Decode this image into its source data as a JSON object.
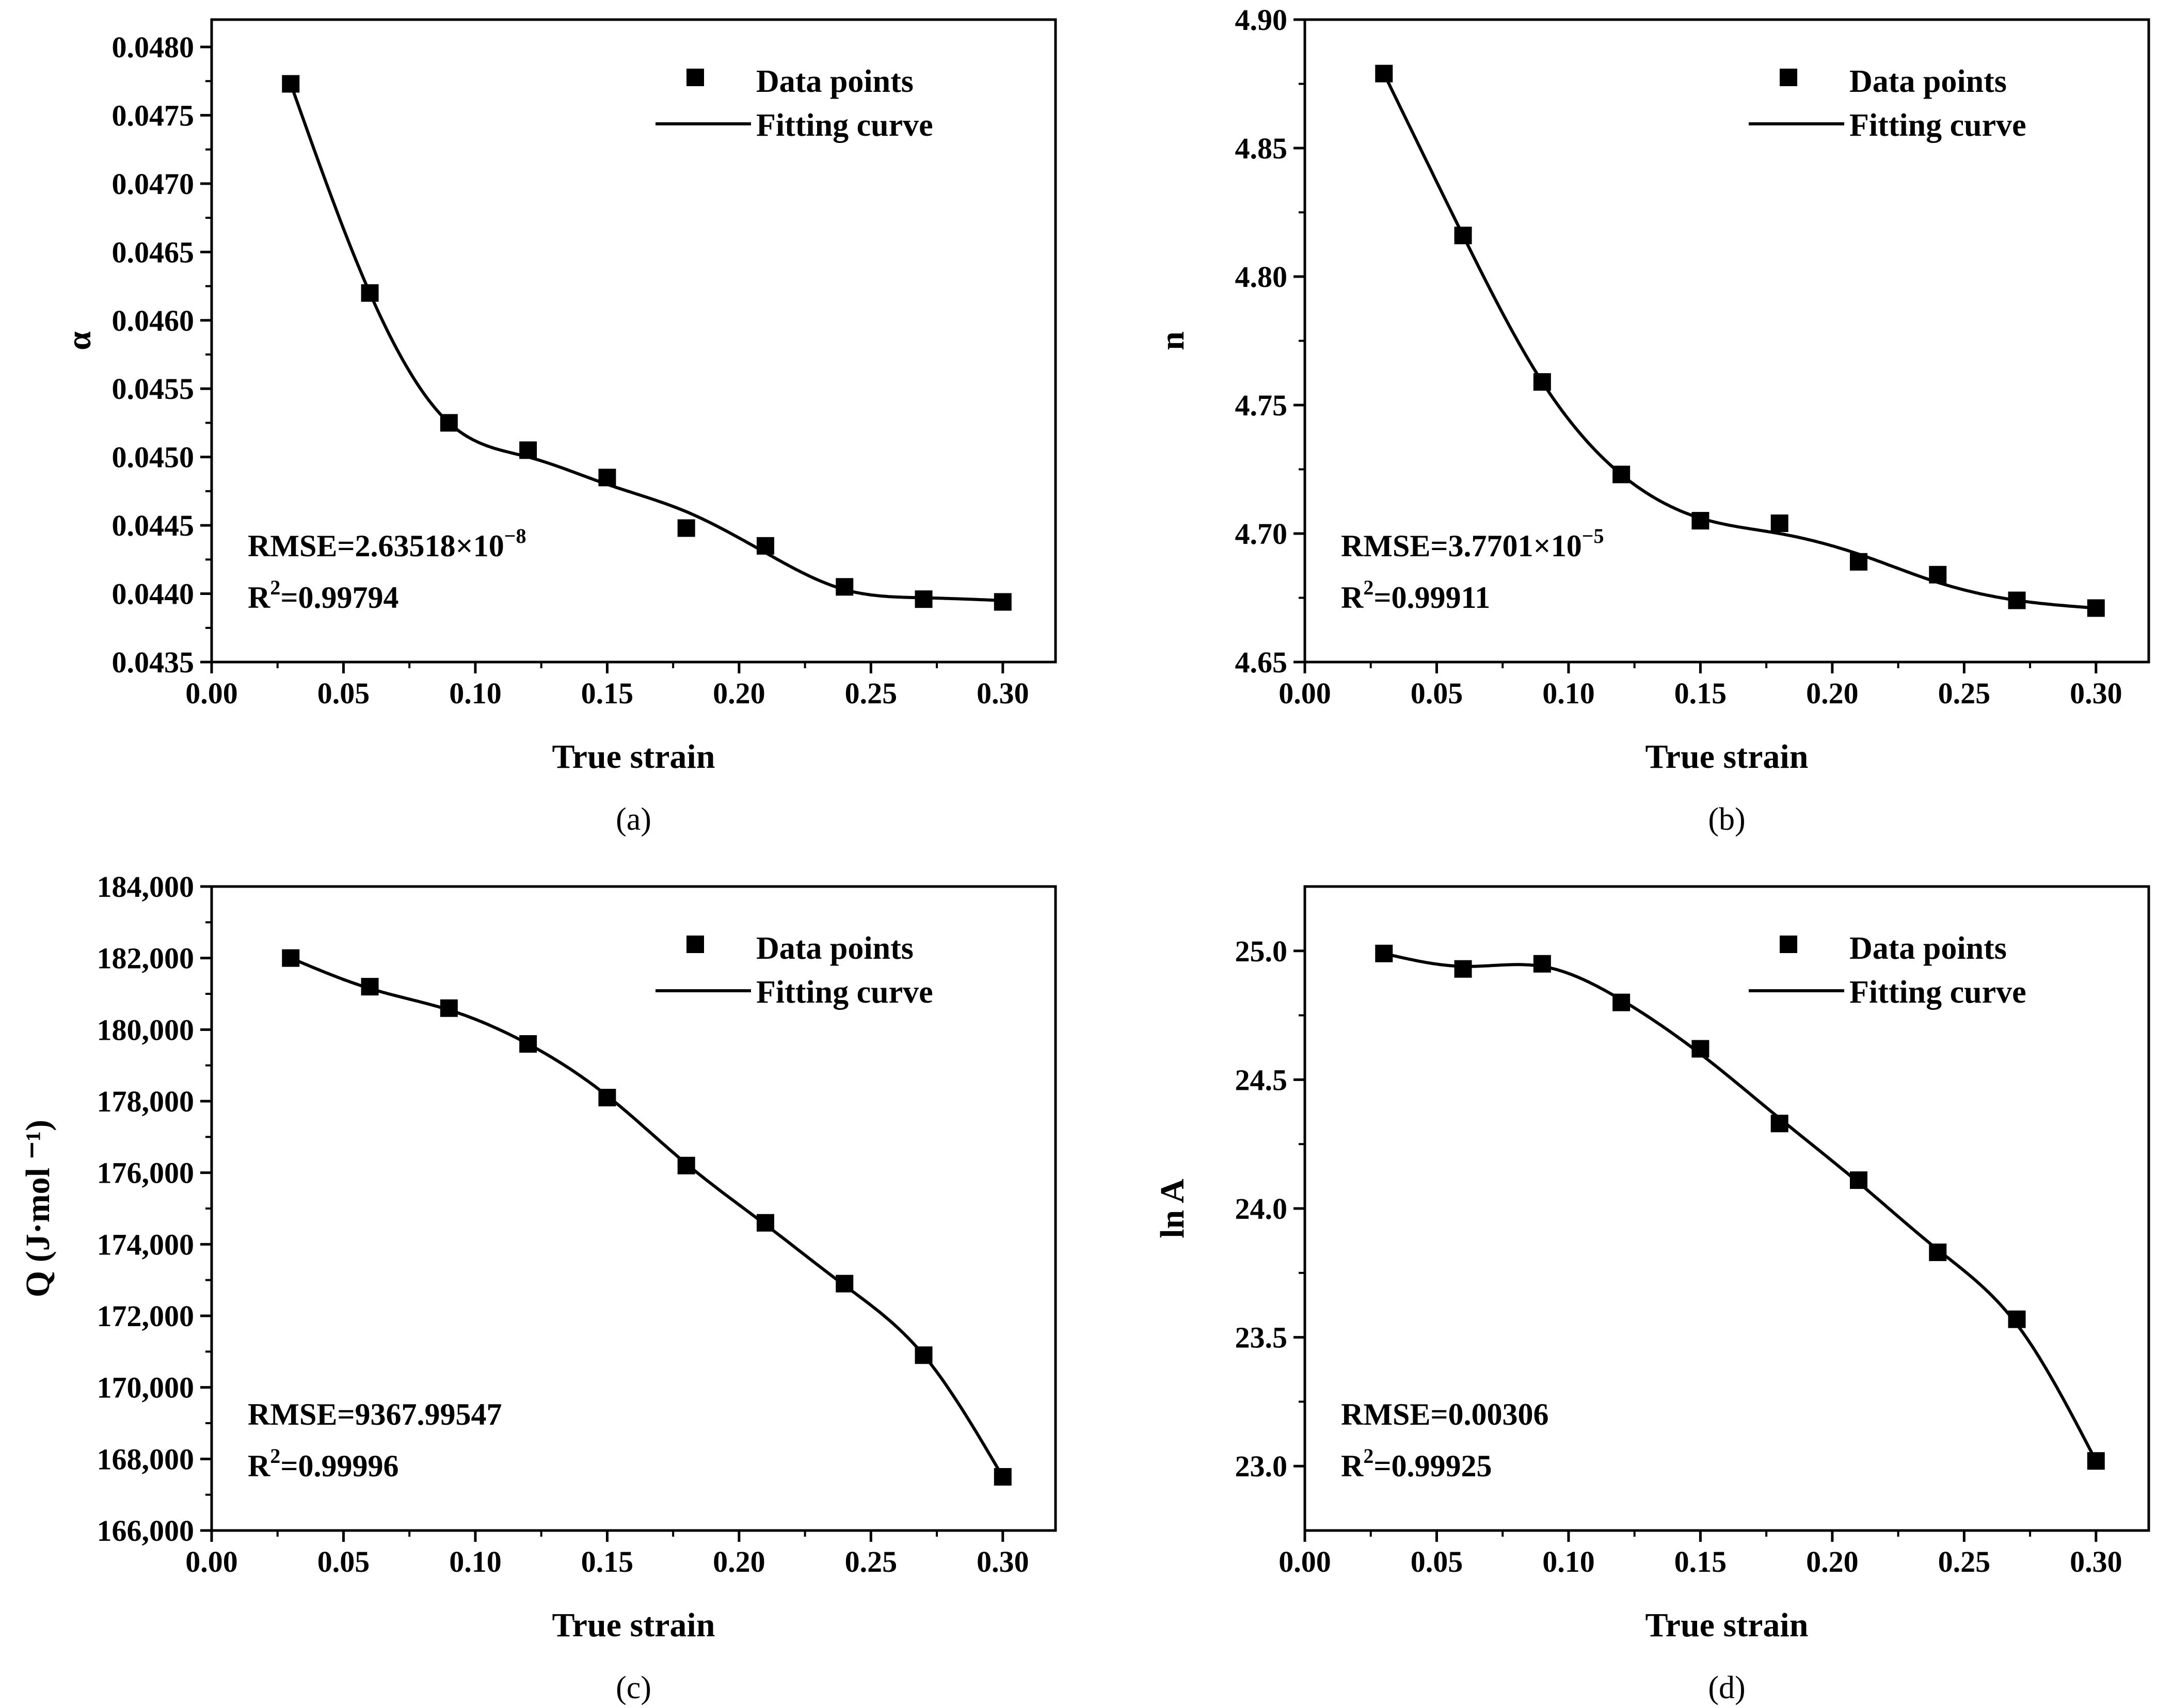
{
  "chart_data": [
    {
      "type": "scatter",
      "panel": "a",
      "caption": "(a)",
      "xlabel": "True strain",
      "ylabel": "α",
      "xlim": [
        0.0,
        0.32
      ],
      "ylim": [
        0.0435,
        0.0482
      ],
      "xticks": [
        0.0,
        0.05,
        0.1,
        0.15,
        0.2,
        0.25,
        0.3
      ],
      "xtick_labels": [
        "0.00",
        "0.05",
        "0.10",
        "0.15",
        "0.20",
        "0.25",
        "0.30"
      ],
      "yticks": [
        0.0435,
        0.044,
        0.0445,
        0.045,
        0.0455,
        0.046,
        0.0465,
        0.047,
        0.0475,
        0.048
      ],
      "ytick_labels": [
        "0.0435",
        "0.0440",
        "0.0445",
        "0.0450",
        "0.0455",
        "0.0460",
        "0.0465",
        "0.0470",
        "0.0475",
        "0.0480"
      ],
      "legend": {
        "points_label": "Data points",
        "curve_label": "Fitting curve",
        "position": "top-right"
      },
      "stats": {
        "rmse_label": "RMSE=2.63518×10",
        "rmse_exp": "−8",
        "r2_prefix": "R",
        "r2_sup": "2",
        "r2_value": "=0.99794"
      },
      "series": [
        {
          "name": "Data points",
          "x": [
            0.03,
            0.06,
            0.09,
            0.12,
            0.15,
            0.18,
            0.21,
            0.24,
            0.27,
            0.3
          ],
          "y": [
            0.04773,
            0.0462,
            0.04525,
            0.04505,
            0.04485,
            0.04448,
            0.04435,
            0.04405,
            0.04396,
            0.04394
          ]
        },
        {
          "name": "Fitting curve",
          "x": [
            0.03,
            0.06,
            0.09,
            0.12,
            0.15,
            0.18,
            0.21,
            0.24,
            0.27,
            0.3
          ],
          "y": [
            0.04773,
            0.0462,
            0.04525,
            0.045,
            0.0448,
            0.0446,
            0.0443,
            0.04403,
            0.04397,
            0.04395
          ]
        }
      ]
    },
    {
      "type": "scatter",
      "panel": "b",
      "caption": "(b)",
      "xlabel": "True strain",
      "ylabel": "n",
      "xlim": [
        0.0,
        0.32
      ],
      "ylim": [
        4.65,
        4.9
      ],
      "xticks": [
        0.0,
        0.05,
        0.1,
        0.15,
        0.2,
        0.25,
        0.3
      ],
      "xtick_labels": [
        "0.00",
        "0.05",
        "0.10",
        "0.15",
        "0.20",
        "0.25",
        "0.30"
      ],
      "yticks": [
        4.65,
        4.7,
        4.75,
        4.8,
        4.85,
        4.9
      ],
      "ytick_labels": [
        "4.65",
        "4.70",
        "4.75",
        "4.80",
        "4.85",
        "4.90"
      ],
      "legend": {
        "points_label": "Data points",
        "curve_label": "Fitting curve",
        "position": "top-right"
      },
      "stats": {
        "rmse_label": "RMSE=3.7701×10",
        "rmse_exp": "−5",
        "r2_prefix": "R",
        "r2_sup": "2",
        "r2_value": "=0.99911"
      },
      "series": [
        {
          "name": "Data points",
          "x": [
            0.03,
            0.06,
            0.09,
            0.12,
            0.15,
            0.18,
            0.21,
            0.24,
            0.27,
            0.3
          ],
          "y": [
            4.879,
            4.816,
            4.759,
            4.723,
            4.705,
            4.704,
            4.689,
            4.684,
            4.674,
            4.671
          ]
        },
        {
          "name": "Fitting curve",
          "x": [
            0.03,
            0.06,
            0.09,
            0.12,
            0.15,
            0.18,
            0.21,
            0.24,
            0.27,
            0.3
          ],
          "y": [
            4.879,
            4.816,
            4.759,
            4.723,
            4.706,
            4.7,
            4.692,
            4.681,
            4.674,
            4.671
          ]
        }
      ]
    },
    {
      "type": "scatter",
      "panel": "c",
      "caption": "(c)",
      "xlabel": "True strain",
      "ylabel": "Q (J·mol ⁻¹)",
      "xlim": [
        0.0,
        0.32
      ],
      "ylim": [
        166000,
        184000
      ],
      "xticks": [
        0.0,
        0.05,
        0.1,
        0.15,
        0.2,
        0.25,
        0.3
      ],
      "xtick_labels": [
        "0.00",
        "0.05",
        "0.10",
        "0.15",
        "0.20",
        "0.25",
        "0.30"
      ],
      "yticks": [
        166000,
        168000,
        170000,
        172000,
        174000,
        176000,
        178000,
        180000,
        182000,
        184000
      ],
      "ytick_labels": [
        "166,000",
        "168,000",
        "170,000",
        "172,000",
        "174,000",
        "176,000",
        "178,000",
        "180,000",
        "182,000",
        "184,000"
      ],
      "legend": {
        "points_label": "Data points",
        "curve_label": "Fitting curve",
        "position": "top-right"
      },
      "stats": {
        "rmse_label": "RMSE=9367.99547",
        "rmse_exp": "",
        "r2_prefix": "R",
        "r2_sup": "2",
        "r2_value": "=0.99996"
      },
      "series": [
        {
          "name": "Data points",
          "x": [
            0.03,
            0.06,
            0.09,
            0.12,
            0.15,
            0.18,
            0.21,
            0.24,
            0.27,
            0.3
          ],
          "y": [
            182000,
            181200,
            180600,
            179600,
            178100,
            176200,
            174600,
            172900,
            170900,
            167500
          ]
        },
        {
          "name": "Fitting curve",
          "x": [
            0.03,
            0.06,
            0.09,
            0.12,
            0.15,
            0.18,
            0.21,
            0.24,
            0.27,
            0.3
          ],
          "y": [
            182000,
            181150,
            180550,
            179600,
            178150,
            176250,
            174550,
            172850,
            170900,
            167500
          ]
        }
      ]
    },
    {
      "type": "scatter",
      "panel": "d",
      "caption": "(d)",
      "xlabel": "True strain",
      "ylabel": "ln A",
      "xlim": [
        0.0,
        0.32
      ],
      "ylim": [
        22.75,
        25.25
      ],
      "xticks": [
        0.0,
        0.05,
        0.1,
        0.15,
        0.2,
        0.25,
        0.3
      ],
      "xtick_labels": [
        "0.00",
        "0.05",
        "0.10",
        "0.15",
        "0.20",
        "0.25",
        "0.30"
      ],
      "yticks": [
        23.0,
        23.5,
        24.0,
        24.5,
        25.0
      ],
      "ytick_labels": [
        "23.0",
        "23.5",
        "24.0",
        "24.5",
        "25.0"
      ],
      "legend": {
        "points_label": "Data points",
        "curve_label": "Fitting curve",
        "position": "top-right"
      },
      "stats": {
        "rmse_label": "RMSE=0.00306",
        "rmse_exp": "",
        "r2_prefix": "R",
        "r2_sup": "2",
        "r2_value": "=0.99925"
      },
      "series": [
        {
          "name": "Data points",
          "x": [
            0.03,
            0.06,
            0.09,
            0.12,
            0.15,
            0.18,
            0.21,
            0.24,
            0.27,
            0.3
          ],
          "y": [
            24.99,
            24.93,
            24.95,
            24.8,
            24.62,
            24.33,
            24.11,
            23.83,
            23.57,
            23.02
          ]
        },
        {
          "name": "Fitting curve",
          "x": [
            0.03,
            0.06,
            0.09,
            0.12,
            0.15,
            0.18,
            0.21,
            0.24,
            0.27,
            0.3
          ],
          "y": [
            24.99,
            24.94,
            24.94,
            24.81,
            24.6,
            24.35,
            24.1,
            23.84,
            23.55,
            23.02
          ]
        }
      ]
    }
  ]
}
